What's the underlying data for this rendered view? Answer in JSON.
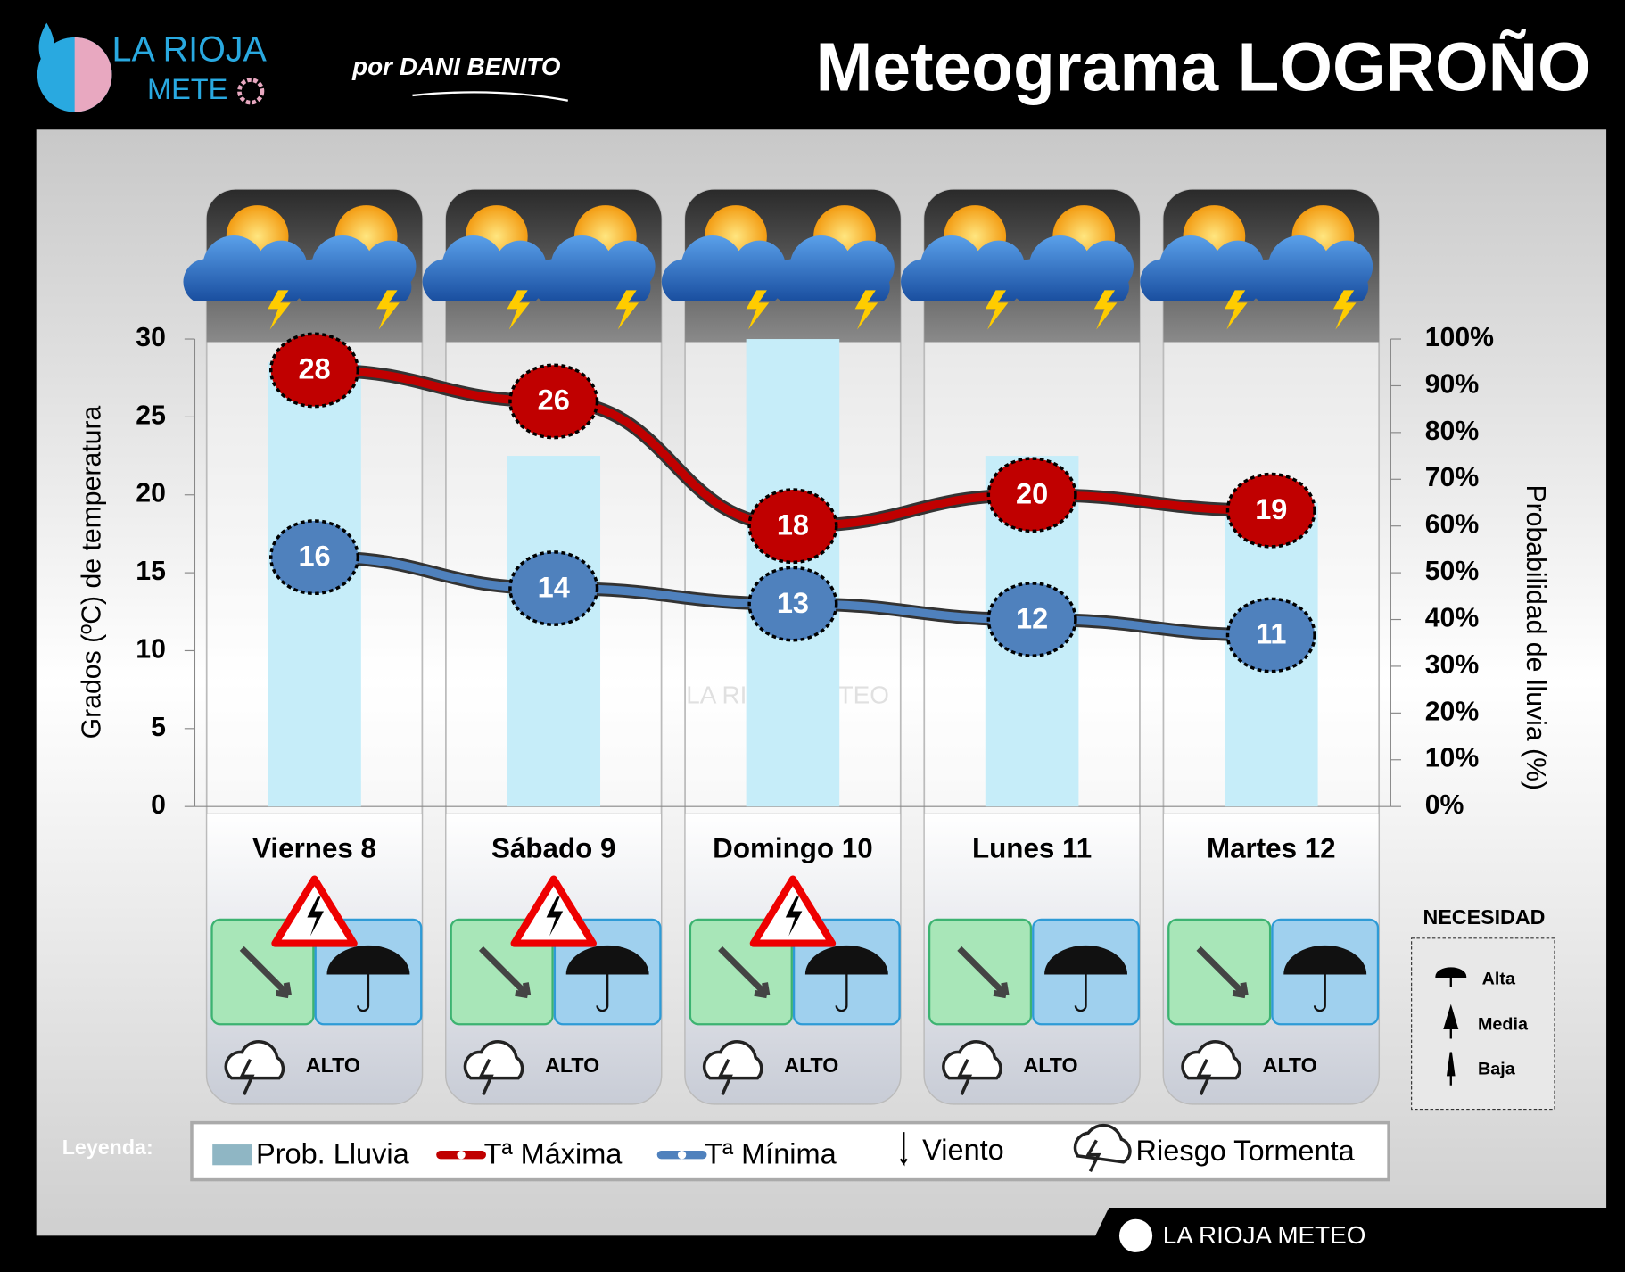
{
  "header": {
    "logo_top": "LA RIOJA",
    "logo_bottom": "METE",
    "byline": "por DANI BENITO",
    "title": "Meteograma LOGROÑO"
  },
  "watermark": "LA RIOJA METEO",
  "footer": "LA RIOJA METEO",
  "chart_data": {
    "type": "bar",
    "categories": [
      "Viernes 8",
      "Sábado 9",
      "Domingo 10",
      "Lunes 11",
      "Martes 12"
    ],
    "ylabel": "Grados (ºC) de temperatura",
    "y2label": "Probabilidad de lluvia (%)",
    "ylim": [
      0,
      30
    ],
    "yticks": [
      0,
      5,
      10,
      15,
      20,
      25,
      30
    ],
    "y2lim": [
      0,
      100
    ],
    "y2ticks": [
      {
        "value": 0,
        "label": "0%"
      },
      {
        "value": 10,
        "label": "10%"
      },
      {
        "value": 20,
        "label": "20%"
      },
      {
        "value": 30,
        "label": "30%"
      },
      {
        "value": 40,
        "label": "40%"
      },
      {
        "value": 50,
        "label": "50%"
      },
      {
        "value": 60,
        "label": "60%"
      },
      {
        "value": 70,
        "label": "70%"
      },
      {
        "value": 80,
        "label": "80%"
      },
      {
        "value": 90,
        "label": "90%"
      },
      {
        "value": 100,
        "label": "100%"
      }
    ],
    "series": [
      {
        "name": "Prob. Lluvia",
        "color": "#c6edf9",
        "axis": "y2",
        "values": [
          95,
          75,
          100,
          75,
          65
        ]
      },
      {
        "name": "Tª Máxima",
        "color": "#c00000",
        "type": "line",
        "values": [
          28,
          26,
          18,
          20,
          19
        ]
      },
      {
        "name": "Tª Mínima",
        "color": "#4f81bd",
        "type": "line",
        "values": [
          16,
          14,
          13,
          12,
          11
        ]
      }
    ]
  },
  "days": [
    {
      "risk": "ALTO",
      "storm_warning": true
    },
    {
      "risk": "ALTO",
      "storm_warning": true
    },
    {
      "risk": "ALTO",
      "storm_warning": true
    },
    {
      "risk": "ALTO",
      "storm_warning": false
    },
    {
      "risk": "ALTO",
      "storm_warning": false
    }
  ],
  "legend": {
    "title": "Leyenda:",
    "wind": "Viento",
    "storm": "Riesgo Tormenta"
  },
  "necesidad": {
    "title": "NECESIDAD",
    "levels": [
      "Alta",
      "Media",
      "Baja"
    ]
  }
}
